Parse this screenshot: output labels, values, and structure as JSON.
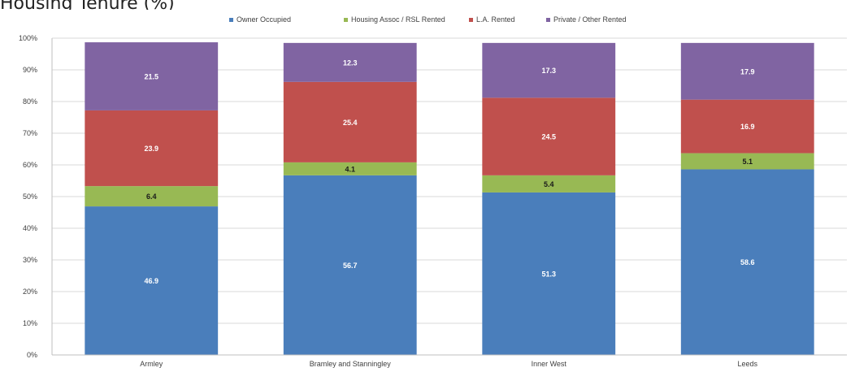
{
  "title": "Housing Tenure (%)",
  "chart_data": {
    "type": "bar",
    "stacked": true,
    "categories": [
      "Armley",
      "Bramley and Stanningley",
      "Inner West",
      "Leeds"
    ],
    "series": [
      {
        "name": "Owner Occupied",
        "color": "#4a7ebb",
        "values": [
          46.9,
          56.7,
          51.3,
          58.6
        ]
      },
      {
        "name": "Housing Assoc / RSL Rented",
        "color": "#98b954",
        "values": [
          6.4,
          4.1,
          5.4,
          5.1
        ]
      },
      {
        "name": "L.A. Rented",
        "color": "#c0504d",
        "values": [
          23.9,
          25.4,
          24.5,
          16.9
        ]
      },
      {
        "name": "Private / Other Rented",
        "color": "#8064a2",
        "values": [
          21.5,
          12.3,
          17.3,
          17.9
        ]
      }
    ],
    "ylim": [
      0,
      100
    ],
    "yticks": [
      "0%",
      "10%",
      "20%",
      "30%",
      "40%",
      "50%",
      "60%",
      "70%",
      "80%",
      "90%",
      "100%"
    ],
    "grid": true,
    "legend_position": "top"
  }
}
